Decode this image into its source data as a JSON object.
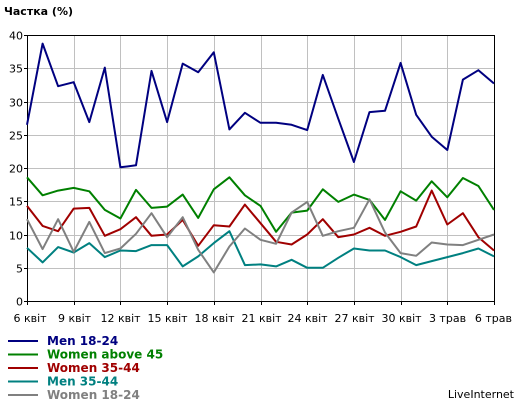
{
  "chart_data": {
    "type": "line",
    "title": "",
    "ylabel": "Частка (%)",
    "xlabel": "",
    "ylim": [
      0,
      40
    ],
    "yticks": [
      0,
      5,
      10,
      15,
      20,
      25,
      30,
      35,
      40
    ],
    "grid": true,
    "legend_position": "bottom-left",
    "xtick_labels": [
      "6 квіт",
      "9 квіт",
      "12 квіт",
      "15 квіт",
      "18 квіт",
      "21 квіт",
      "24 квіт",
      "27 квіт",
      "30 квіт",
      "3 трав",
      "6 трав"
    ],
    "x": [
      "6 квіт",
      "7 квіт",
      "8 квіт",
      "9 квіт",
      "10 квіт",
      "11 квіт",
      "12 квіт",
      "13 квіт",
      "14 квіт",
      "15 квіт",
      "16 квіт",
      "17 квіт",
      "18 квіт",
      "19 квіт",
      "20 квіт",
      "21 квіт",
      "22 квіт",
      "23 квіт",
      "24 квіт",
      "25 квіт",
      "26 квіт",
      "27 квіт",
      "28 квіт",
      "29 квіт",
      "30 квіт",
      "1 трав",
      "2 трав",
      "3 трав",
      "4 трав",
      "5 трав",
      "6 трав"
    ],
    "series": [
      {
        "name": "Men 18-24",
        "color": "#000080",
        "values": [
          26.5,
          38.7,
          32.3,
          32.9,
          26.9,
          35.1,
          20.1,
          20.4,
          34.6,
          26.9,
          35.7,
          34.4,
          37.4,
          25.8,
          28.3,
          26.8,
          26.8,
          26.5,
          25.7,
          34.0,
          27.4,
          20.9,
          28.4,
          28.6,
          35.8,
          28.0,
          24.7,
          22.7,
          33.3,
          34.7,
          32.7
        ]
      },
      {
        "name": "Women above 45",
        "color": "#008000",
        "values": [
          18.6,
          15.9,
          16.6,
          17.0,
          16.5,
          13.7,
          12.4,
          16.7,
          14.0,
          14.2,
          16.0,
          12.5,
          16.8,
          18.6,
          15.9,
          14.3,
          10.4,
          13.3,
          13.6,
          16.8,
          14.9,
          16.0,
          15.2,
          12.2,
          16.5,
          15.1,
          18.0,
          15.6,
          18.5,
          17.3,
          13.7
        ]
      },
      {
        "name": "Women 35-44",
        "color": "#a00000",
        "values": [
          14.3,
          11.3,
          10.5,
          13.9,
          14.0,
          9.8,
          10.8,
          12.6,
          9.8,
          10.0,
          12.2,
          8.3,
          11.4,
          11.2,
          14.5,
          11.7,
          8.9,
          8.5,
          10.0,
          12.3,
          9.6,
          10.0,
          11.0,
          9.8,
          10.4,
          11.2,
          16.6,
          11.5,
          13.2,
          9.6,
          7.6
        ]
      },
      {
        "name": "Men 35-44",
        "color": "#008080",
        "values": [
          8.0,
          5.8,
          8.1,
          7.3,
          8.7,
          6.6,
          7.6,
          7.5,
          8.4,
          8.4,
          5.2,
          6.7,
          8.7,
          10.5,
          5.4,
          5.5,
          5.2,
          6.2,
          5.0,
          5.0,
          6.5,
          7.9,
          7.6,
          7.6,
          6.6,
          5.4,
          6.0,
          6.6,
          7.2,
          7.9,
          6.7
        ]
      },
      {
        "name": "Women 18-24",
        "color": "#808080",
        "values": [
          12.3,
          7.8,
          12.3,
          7.4,
          11.9,
          7.2,
          7.9,
          10.1,
          13.2,
          9.6,
          12.6,
          7.7,
          4.3,
          8.2,
          10.9,
          9.2,
          8.6,
          13.3,
          14.9,
          9.8,
          10.5,
          11.0,
          15.3,
          10.3,
          7.2,
          6.8,
          8.8,
          8.5,
          8.4,
          9.2,
          10.0
        ]
      }
    ]
  },
  "footer": {
    "brand": "LiveInternet"
  }
}
